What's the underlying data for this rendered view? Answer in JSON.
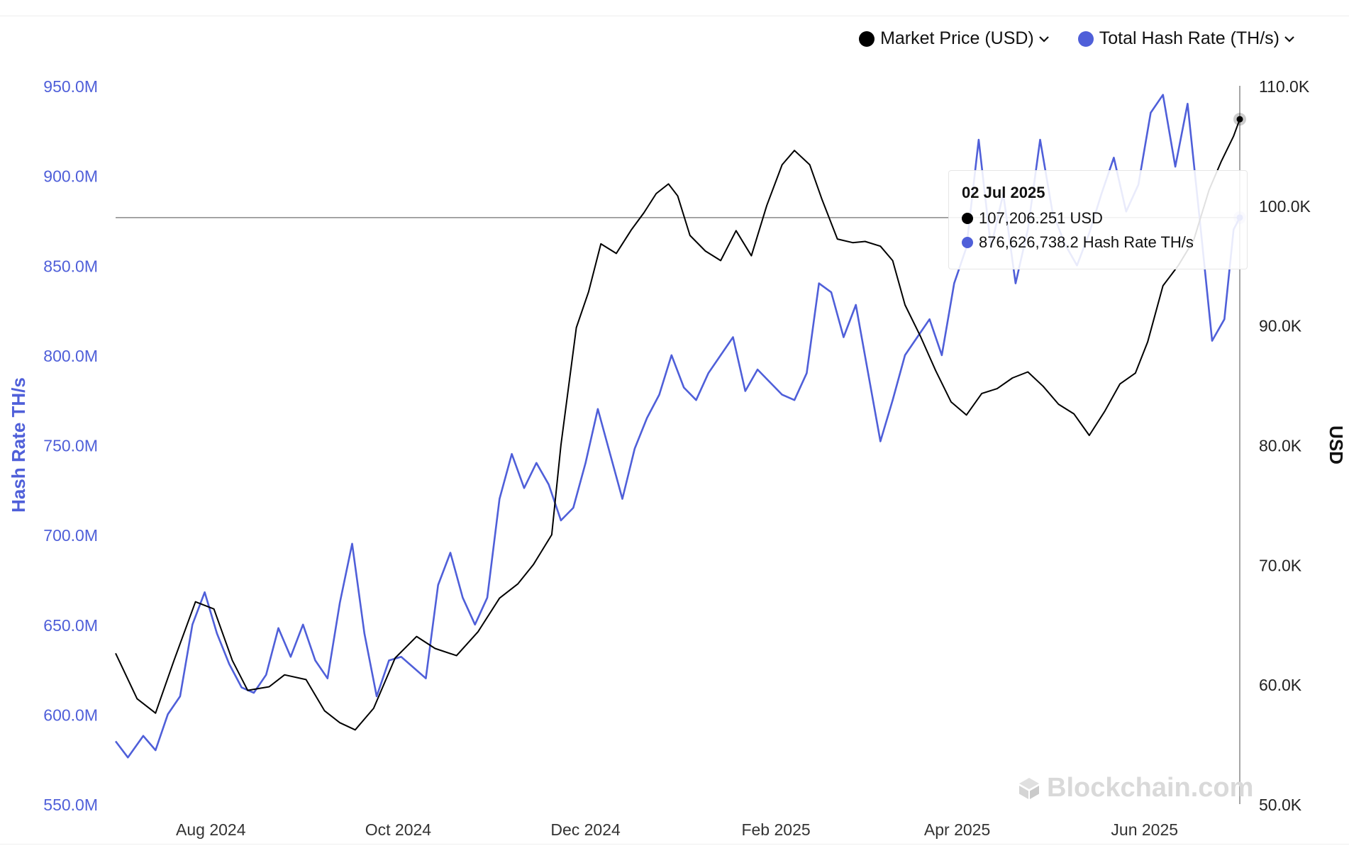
{
  "legend": {
    "price_label": "Market Price (USD)",
    "hash_label": "Total Hash Rate (TH/s)"
  },
  "colors": {
    "price": "#000000",
    "hash": "#4f5fd9",
    "axis_left": "#4f5fd9",
    "axis_right": "#222222"
  },
  "tooltip": {
    "date": "02 Jul 2025",
    "price": "107,206.251 USD",
    "hash": "876,626,738.2 Hash Rate TH/s"
  },
  "watermark": "Blockchain.com",
  "chart_data": {
    "type": "line",
    "x_range": [
      "2024-07-01",
      "2025-07-02"
    ],
    "xticks": [
      {
        "date": "2024-08-01",
        "label": "Aug 2024"
      },
      {
        "date": "2024-10-01",
        "label": "Oct 2024"
      },
      {
        "date": "2024-12-01",
        "label": "Dec 2024"
      },
      {
        "date": "2025-02-01",
        "label": "Feb 2025"
      },
      {
        "date": "2025-04-01",
        "label": "Apr 2025"
      },
      {
        "date": "2025-06-01",
        "label": "Jun 2025"
      }
    ],
    "y_left": {
      "label": "Hash Rate TH/s",
      "range": [
        550000000,
        950000000
      ],
      "ticks": [
        550000000,
        600000000,
        650000000,
        700000000,
        750000000,
        800000000,
        850000000,
        900000000,
        950000000
      ],
      "tick_labels": [
        "550.0M",
        "600.0M",
        "650.0M",
        "700.0M",
        "750.0M",
        "800.0M",
        "850.0M",
        "900.0M",
        "950.0M"
      ]
    },
    "y_right": {
      "label": "USD",
      "range": [
        50000,
        110000
      ],
      "ticks": [
        50000,
        60000,
        70000,
        80000,
        90000,
        100000,
        110000
      ],
      "tick_labels": [
        "50.0K",
        "60.0K",
        "70.0K",
        "80.0K",
        "90.0K",
        "100.0K",
        "110.0K"
      ]
    },
    "crosshair_hash": 876626738.2,
    "series": [
      {
        "name": "Market Price (USD)",
        "axis": "right",
        "points": [
          [
            "2024-07-01",
            62600
          ],
          [
            "2024-07-08",
            58800
          ],
          [
            "2024-07-14",
            57600
          ],
          [
            "2024-07-20",
            62000
          ],
          [
            "2024-07-27",
            66900
          ],
          [
            "2024-08-02",
            66300
          ],
          [
            "2024-08-08",
            62000
          ],
          [
            "2024-08-13",
            59500
          ],
          [
            "2024-08-20",
            59800
          ],
          [
            "2024-08-25",
            60800
          ],
          [
            "2024-09-01",
            60400
          ],
          [
            "2024-09-07",
            57800
          ],
          [
            "2024-09-12",
            56800
          ],
          [
            "2024-09-17",
            56200
          ],
          [
            "2024-09-23",
            58000
          ],
          [
            "2024-09-30",
            62200
          ],
          [
            "2024-10-07",
            64000
          ],
          [
            "2024-10-13",
            63000
          ],
          [
            "2024-10-20",
            62400
          ],
          [
            "2024-10-27",
            64400
          ],
          [
            "2024-11-03",
            67200
          ],
          [
            "2024-11-09",
            68400
          ],
          [
            "2024-11-14",
            70000
          ],
          [
            "2024-11-20",
            72500
          ],
          [
            "2024-11-23",
            80000
          ],
          [
            "2024-11-28",
            89800
          ],
          [
            "2024-12-02",
            92800
          ],
          [
            "2024-12-06",
            96800
          ],
          [
            "2024-12-11",
            96000
          ],
          [
            "2024-12-16",
            98000
          ],
          [
            "2024-12-20",
            99400
          ],
          [
            "2024-12-24",
            101000
          ],
          [
            "2024-12-28",
            101800
          ],
          [
            "2024-12-31",
            100800
          ],
          [
            "2025-01-04",
            97500
          ],
          [
            "2025-01-09",
            96200
          ],
          [
            "2025-01-14",
            95400
          ],
          [
            "2025-01-19",
            97900
          ],
          [
            "2025-01-24",
            95800
          ],
          [
            "2025-01-29",
            100000
          ],
          [
            "2025-02-03",
            103400
          ],
          [
            "2025-02-07",
            104600
          ],
          [
            "2025-02-12",
            103400
          ],
          [
            "2025-02-16",
            100500
          ],
          [
            "2025-02-21",
            97200
          ],
          [
            "2025-02-26",
            96900
          ],
          [
            "2025-03-02",
            97000
          ],
          [
            "2025-03-07",
            96600
          ],
          [
            "2025-03-11",
            95400
          ],
          [
            "2025-03-15",
            91700
          ],
          [
            "2025-03-20",
            89100
          ],
          [
            "2025-03-25",
            86200
          ],
          [
            "2025-03-30",
            83600
          ],
          [
            "2025-04-04",
            82500
          ],
          [
            "2025-04-09",
            84300
          ],
          [
            "2025-04-14",
            84700
          ],
          [
            "2025-04-19",
            85600
          ],
          [
            "2025-04-24",
            86100
          ],
          [
            "2025-04-29",
            84900
          ],
          [
            "2025-05-04",
            83400
          ],
          [
            "2025-05-09",
            82600
          ],
          [
            "2025-05-14",
            80800
          ],
          [
            "2025-05-19",
            82800
          ],
          [
            "2025-05-24",
            85100
          ],
          [
            "2025-05-29",
            86000
          ],
          [
            "2025-06-02",
            88600
          ],
          [
            "2025-06-07",
            93300
          ],
          [
            "2025-06-12",
            95000
          ],
          [
            "2025-06-17",
            97100
          ],
          [
            "2025-06-22",
            101300
          ],
          [
            "2025-06-26",
            103700
          ],
          [
            "2025-06-30",
            105800
          ],
          [
            "2025-07-02",
            107206
          ]
        ]
      },
      {
        "name": "Total Hash Rate (TH/s)",
        "axis": "left",
        "points": [
          [
            "2024-07-01",
            585000000
          ],
          [
            "2024-07-05",
            576000000
          ],
          [
            "2024-07-10",
            588000000
          ],
          [
            "2024-07-14",
            580000000
          ],
          [
            "2024-07-18",
            600000000
          ],
          [
            "2024-07-22",
            610000000
          ],
          [
            "2024-07-26",
            650000000
          ],
          [
            "2024-07-30",
            668000000
          ],
          [
            "2024-08-03",
            645000000
          ],
          [
            "2024-08-07",
            628000000
          ],
          [
            "2024-08-11",
            615000000
          ],
          [
            "2024-08-15",
            612000000
          ],
          [
            "2024-08-19",
            622000000
          ],
          [
            "2024-08-23",
            648000000
          ],
          [
            "2024-08-27",
            632000000
          ],
          [
            "2024-08-31",
            650000000
          ],
          [
            "2024-09-04",
            630000000
          ],
          [
            "2024-09-08",
            620000000
          ],
          [
            "2024-09-12",
            662000000
          ],
          [
            "2024-09-16",
            695000000
          ],
          [
            "2024-09-20",
            645000000
          ],
          [
            "2024-09-24",
            610000000
          ],
          [
            "2024-09-28",
            630000000
          ],
          [
            "2024-10-02",
            632000000
          ],
          [
            "2024-10-06",
            626000000
          ],
          [
            "2024-10-10",
            620000000
          ],
          [
            "2024-10-14",
            672000000
          ],
          [
            "2024-10-18",
            690000000
          ],
          [
            "2024-10-22",
            665000000
          ],
          [
            "2024-10-26",
            650000000
          ],
          [
            "2024-10-30",
            665000000
          ],
          [
            "2024-11-03",
            720000000
          ],
          [
            "2024-11-07",
            745000000
          ],
          [
            "2024-11-11",
            726000000
          ],
          [
            "2024-11-15",
            740000000
          ],
          [
            "2024-11-19",
            728000000
          ],
          [
            "2024-11-23",
            708000000
          ],
          [
            "2024-11-27",
            715000000
          ],
          [
            "2024-12-01",
            740000000
          ],
          [
            "2024-12-05",
            770000000
          ],
          [
            "2024-12-09",
            745000000
          ],
          [
            "2024-12-13",
            720000000
          ],
          [
            "2024-12-17",
            748000000
          ],
          [
            "2024-12-21",
            765000000
          ],
          [
            "2024-12-25",
            778000000
          ],
          [
            "2024-12-29",
            800000000
          ],
          [
            "2025-01-02",
            782000000
          ],
          [
            "2025-01-06",
            775000000
          ],
          [
            "2025-01-10",
            790000000
          ],
          [
            "2025-01-14",
            800000000
          ],
          [
            "2025-01-18",
            810000000
          ],
          [
            "2025-01-22",
            780000000
          ],
          [
            "2025-01-26",
            792000000
          ],
          [
            "2025-01-30",
            785000000
          ],
          [
            "2025-02-03",
            778000000
          ],
          [
            "2025-02-07",
            775000000
          ],
          [
            "2025-02-11",
            790000000
          ],
          [
            "2025-02-15",
            840000000
          ],
          [
            "2025-02-19",
            835000000
          ],
          [
            "2025-02-23",
            810000000
          ],
          [
            "2025-02-27",
            828000000
          ],
          [
            "2025-03-03",
            790000000
          ],
          [
            "2025-03-07",
            752000000
          ],
          [
            "2025-03-11",
            775000000
          ],
          [
            "2025-03-15",
            800000000
          ],
          [
            "2025-03-19",
            810000000
          ],
          [
            "2025-03-23",
            820000000
          ],
          [
            "2025-03-27",
            800000000
          ],
          [
            "2025-03-31",
            840000000
          ],
          [
            "2025-04-04",
            860000000
          ],
          [
            "2025-04-08",
            920000000
          ],
          [
            "2025-04-12",
            860000000
          ],
          [
            "2025-04-16",
            890000000
          ],
          [
            "2025-04-20",
            840000000
          ],
          [
            "2025-04-24",
            870000000
          ],
          [
            "2025-04-28",
            920000000
          ],
          [
            "2025-05-02",
            880000000
          ],
          [
            "2025-05-06",
            862000000
          ],
          [
            "2025-05-10",
            850000000
          ],
          [
            "2025-05-14",
            868000000
          ],
          [
            "2025-05-18",
            890000000
          ],
          [
            "2025-05-22",
            910000000
          ],
          [
            "2025-05-26",
            880000000
          ],
          [
            "2025-05-30",
            895000000
          ],
          [
            "2025-06-03",
            935000000
          ],
          [
            "2025-06-07",
            945000000
          ],
          [
            "2025-06-11",
            905000000
          ],
          [
            "2025-06-15",
            940000000
          ],
          [
            "2025-06-19",
            875000000
          ],
          [
            "2025-06-23",
            808000000
          ],
          [
            "2025-06-27",
            820000000
          ],
          [
            "2025-06-30",
            870000000
          ],
          [
            "2025-07-02",
            876626738
          ]
        ]
      }
    ]
  }
}
